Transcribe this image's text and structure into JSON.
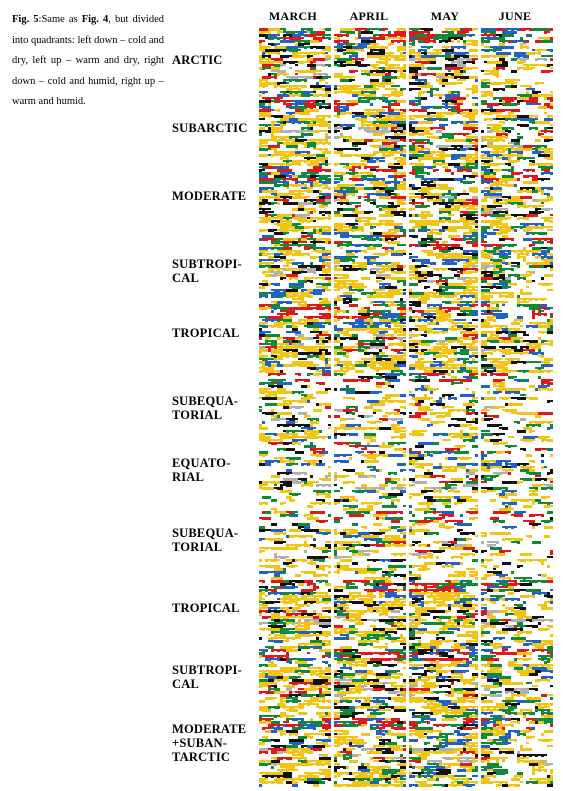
{
  "caption": {
    "fig_label": "Fig. 5",
    "text_1": ":Same as ",
    "fig_ref": "Fig. 4",
    "text_2": ", but divided into quadrants: left down – cold and dry, left up – warm and dry, right down – cold and humid, right up – warm and humid."
  },
  "months": [
    "MARCH",
    "APRIL",
    "MAY",
    "JUNE"
  ],
  "zones": [
    {
      "line1": "ARCTIC",
      "line2": ""
    },
    {
      "line1": "SUBARCTIC",
      "line2": ""
    },
    {
      "line1": "MODERATE",
      "line2": ""
    },
    {
      "line1": "SUBTROPI-",
      "line2": "CAL"
    },
    {
      "line1": "TROPICAL",
      "line2": ""
    },
    {
      "line1": "SUBEQUA-",
      "line2": "TORIAL"
    },
    {
      "line1": "EQUATO-",
      "line2": "RIAL"
    },
    {
      "line1": "SUBEQUA-",
      "line2": "TORIAL"
    },
    {
      "line1": "TROPICAL",
      "line2": ""
    },
    {
      "line1": "SUBTROPI-",
      "line2": "CAL"
    },
    {
      "line1": "MODERATE",
      "line2": "+SUBAN-",
      "line3": "TARCTIC"
    }
  ],
  "colors": {
    "yellow": "#f2c413",
    "blue": "#1f63c8",
    "green": "#0f8a3a",
    "red": "#e01818",
    "black": "#111111",
    "gray": "#b0b0b0",
    "white": "#ffffff"
  }
}
